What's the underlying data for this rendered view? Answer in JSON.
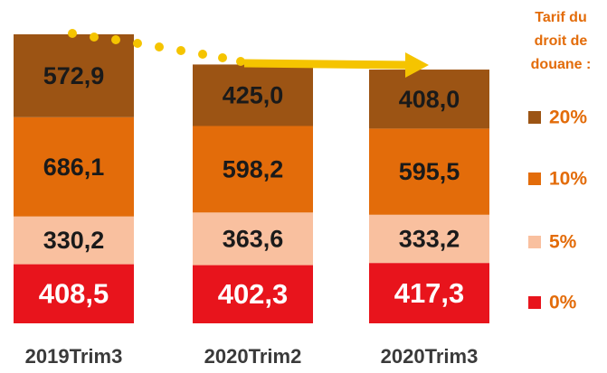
{
  "chart_data": {
    "type": "stacked_bar",
    "categories": [
      "2019Trim3",
      "2020Trim2",
      "2020Trim3"
    ],
    "legend_title": [
      "Tarif du",
      "droit de",
      "douane :"
    ],
    "series": [
      {
        "name": "0%",
        "color": "#e8141c",
        "values": [
          408.5,
          402.3,
          417.3
        ],
        "value_labels": [
          "408,5",
          "402,3",
          "417,3"
        ]
      },
      {
        "name": "5%",
        "color": "#f9c09f",
        "values": [
          330.2,
          363.6,
          333.2
        ],
        "value_labels": [
          "330,2",
          "363,6",
          "333,2"
        ]
      },
      {
        "name": "10%",
        "color": "#e36c0a",
        "values": [
          686.1,
          598.2,
          595.5
        ],
        "value_labels": [
          "686,1",
          "598,2",
          "595,5"
        ]
      },
      {
        "name": "20%",
        "color": "#9c5414",
        "values": [
          572.9,
          425.0,
          408.0
        ],
        "value_labels": [
          "572,9",
          "425,0",
          "408,0"
        ]
      }
    ]
  }
}
